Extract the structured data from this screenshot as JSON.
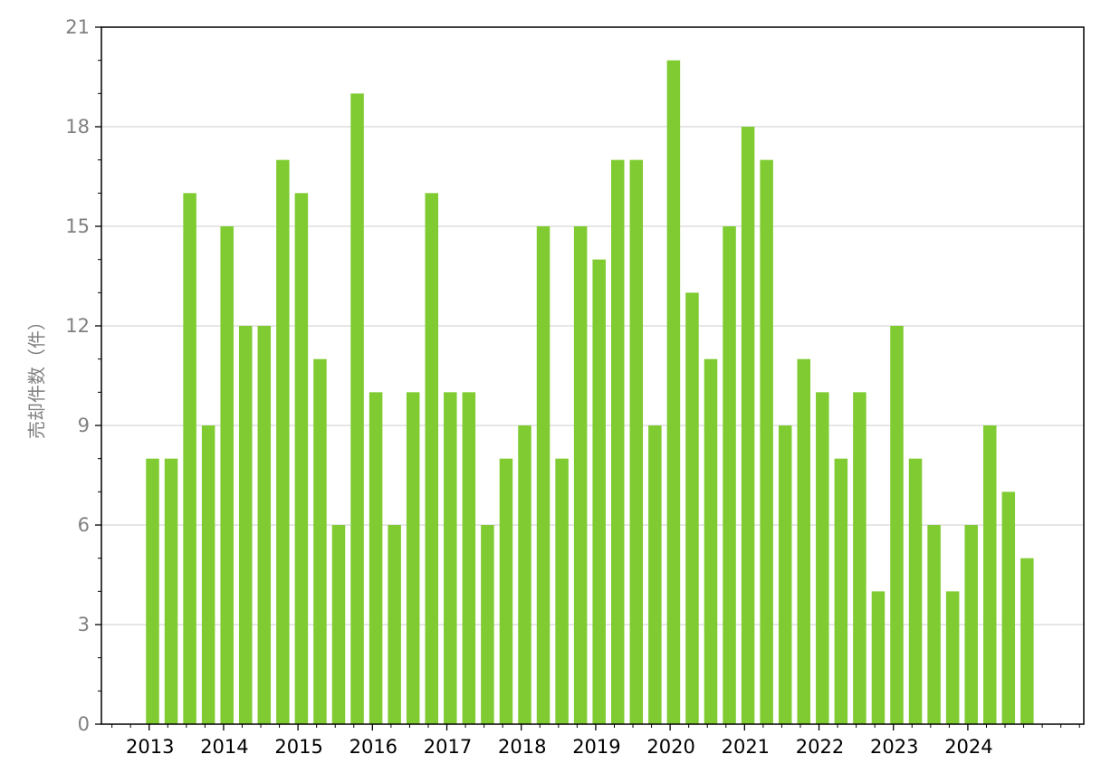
{
  "chart_data": {
    "type": "bar",
    "title": "",
    "xlabel": "",
    "ylabel": "売却件数（件）",
    "ylim": [
      0,
      21
    ],
    "yticks": [
      0,
      3,
      6,
      9,
      12,
      15,
      18,
      21
    ],
    "year_labels": [
      "2013",
      "2014",
      "2015",
      "2016",
      "2017",
      "2018",
      "2019",
      "2020",
      "2021",
      "2022",
      "2023",
      "2024"
    ],
    "bar_color": "#7fcb31",
    "grid": "horizontal",
    "quarters": [
      "2013-Q1",
      "2013-Q2",
      "2013-Q3",
      "2013-Q4",
      "2014-Q1",
      "2014-Q2",
      "2014-Q3",
      "2014-Q4",
      "2015-Q1",
      "2015-Q2",
      "2015-Q3",
      "2015-Q4",
      "2016-Q1",
      "2016-Q2",
      "2016-Q3",
      "2016-Q4",
      "2017-Q1",
      "2017-Q2",
      "2017-Q3",
      "2017-Q4",
      "2018-Q1",
      "2018-Q2",
      "2018-Q3",
      "2018-Q4",
      "2019-Q1",
      "2019-Q2",
      "2019-Q3",
      "2019-Q4",
      "2020-Q1",
      "2020-Q2",
      "2020-Q3",
      "2020-Q4",
      "2021-Q1",
      "2021-Q2",
      "2021-Q3",
      "2021-Q4",
      "2022-Q1",
      "2022-Q2",
      "2022-Q3",
      "2022-Q4",
      "2023-Q1",
      "2023-Q2",
      "2023-Q3",
      "2023-Q4",
      "2024-Q1",
      "2024-Q2",
      "2024-Q3",
      "2024-Q4"
    ],
    "values": [
      8,
      8,
      16,
      9,
      15,
      12,
      12,
      17,
      16,
      11,
      6,
      19,
      10,
      6,
      10,
      16,
      10,
      10,
      6,
      8,
      9,
      15,
      8,
      15,
      14,
      17,
      17,
      9,
      20,
      13,
      11,
      15,
      18,
      17,
      9,
      11,
      10,
      8,
      10,
      4,
      12,
      8,
      6,
      4,
      6,
      9,
      7,
      5
    ]
  }
}
